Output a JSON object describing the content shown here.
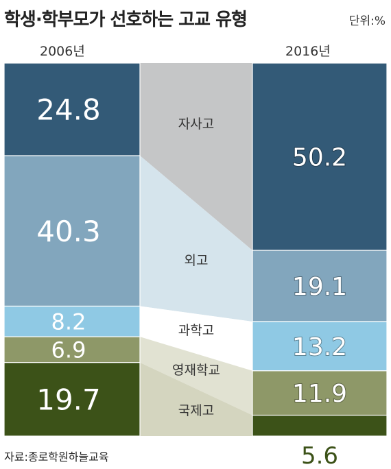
{
  "header": {
    "title": "학생·학부모가 선호하는 고교 유형",
    "unit": "단위:%"
  },
  "source": "자료:종로학원하늘교육",
  "chart_data": {
    "type": "bar",
    "categories": [
      "자사고",
      "외고",
      "과학고",
      "영재학교",
      "국제고"
    ],
    "series": [
      {
        "name": "2006년",
        "values": [
          24.8,
          40.3,
          8.2,
          6.9,
          19.7
        ],
        "value_labels": [
          "24.8",
          "40.3",
          "8.2",
          "6.9",
          "19.7"
        ]
      },
      {
        "name": "2016년",
        "values": [
          50.2,
          19.1,
          13.2,
          11.9,
          5.6
        ],
        "value_labels": [
          "50.2",
          "19.1",
          "13.2",
          "11.9",
          "5.6"
        ]
      }
    ],
    "stacked": true,
    "colors": [
      "#335a77",
      "#82a6bd",
      "#8fc9e4",
      "#8e9868",
      "#3c5218"
    ],
    "connector_colors": [
      "#c5c6c7",
      "#d5e4ec",
      "#ffffff",
      "#e1e2d2",
      "#d4d5bf"
    ],
    "ylim": [
      0,
      100
    ]
  }
}
